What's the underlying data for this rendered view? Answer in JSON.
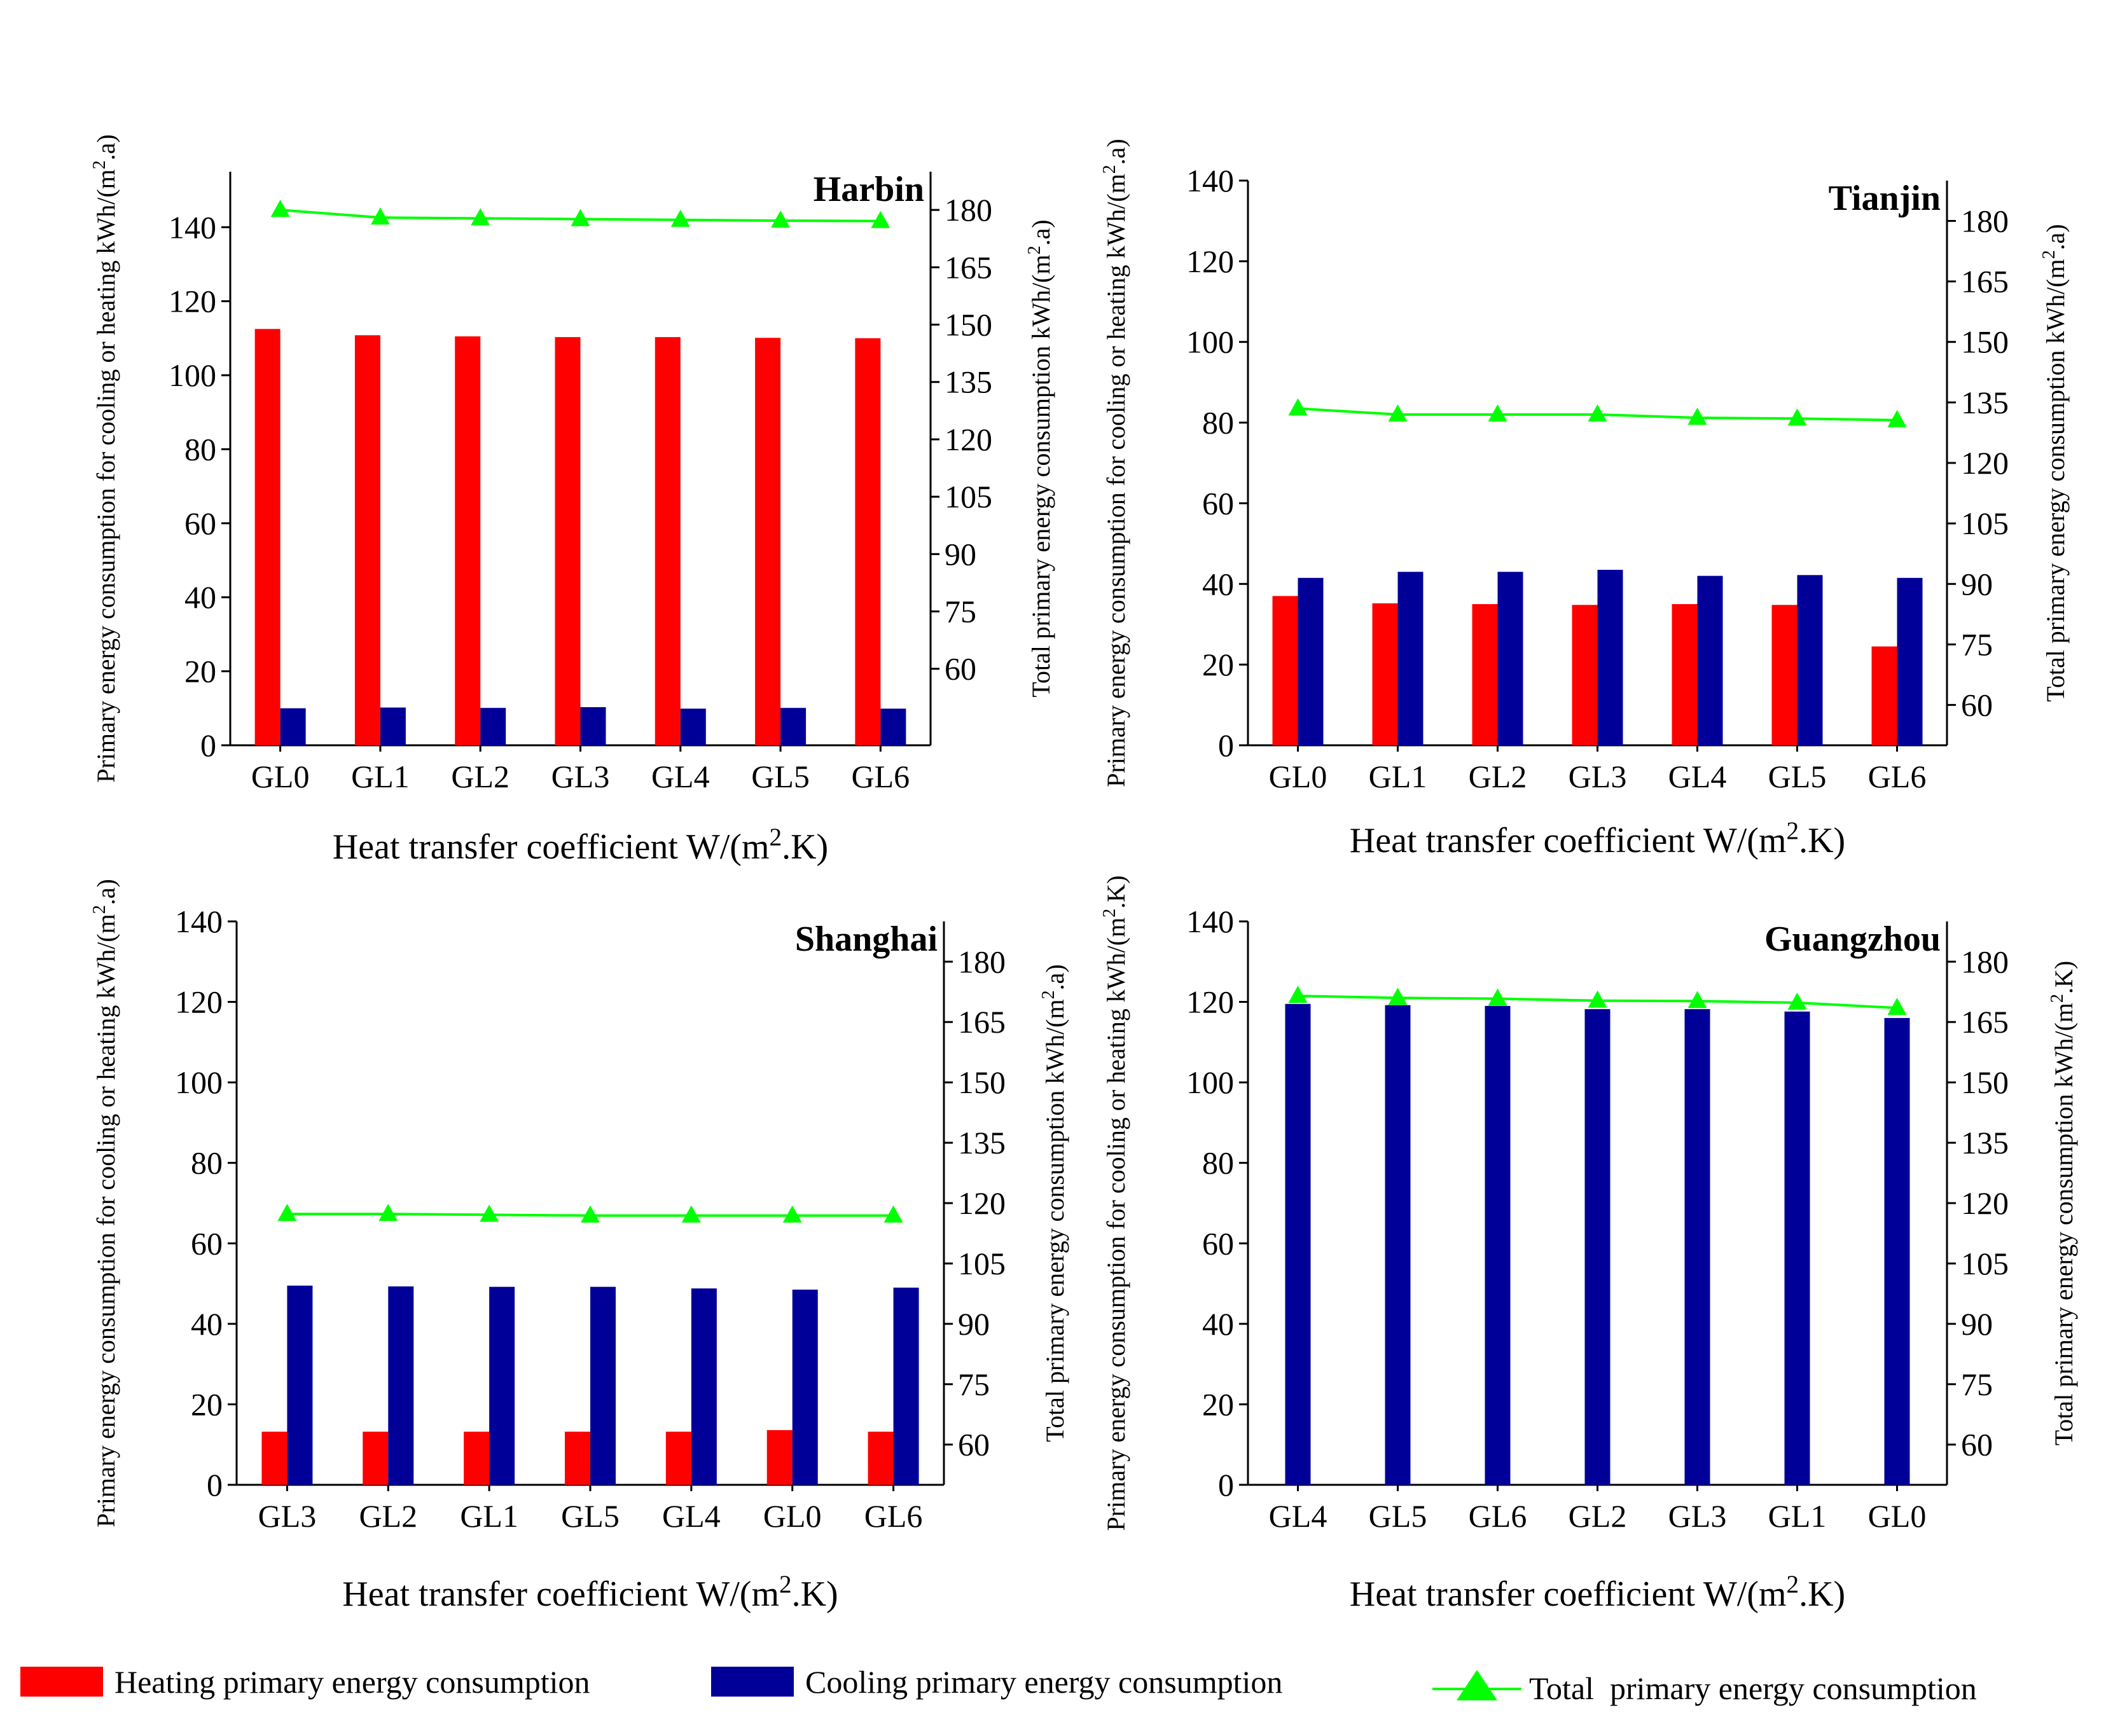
{
  "chart_data": [
    {
      "type": "bar",
      "title": "Harbin",
      "categories": [
        "GL0",
        "GL1",
        "GL2",
        "GL3",
        "GL4",
        "GL5",
        "GL6"
      ],
      "series": [
        {
          "name": "Heating primary energy consumption",
          "axis": "left",
          "values": [
            112.5,
            110.8,
            110.5,
            110.3,
            110.3,
            110.1,
            110.0
          ]
        },
        {
          "name": "Cooling primary energy consumption",
          "axis": "left",
          "values": [
            10.0,
            10.2,
            10.1,
            10.3,
            9.9,
            10.1,
            9.9
          ]
        },
        {
          "name": "Total  primary energy consumption",
          "axis": "right",
          "type": "line",
          "values": [
            180.0,
            178.0,
            177.8,
            177.6,
            177.4,
            177.2,
            177.1
          ]
        }
      ],
      "xlabel": "Heat transfer coefficient W/(m2.K)",
      "ylabel_left": "Primary energy consumption for cooling or heating kWh/(m2.a)",
      "ylabel_right": "Total primary energy consumption kWh/(m2.a)",
      "ylim_left": [
        0,
        155
      ],
      "yticks_left": [
        0,
        20,
        40,
        60,
        80,
        100,
        120,
        140
      ],
      "ylim_right": [
        40,
        190
      ],
      "yticks_right": [
        60,
        75,
        90,
        105,
        120,
        135,
        150,
        165,
        180
      ]
    },
    {
      "type": "bar",
      "title": "Tianjin",
      "categories": [
        "GL0",
        "GL1",
        "GL2",
        "GL3",
        "GL4",
        "GL5",
        "GL6"
      ],
      "series": [
        {
          "name": "Heating primary energy consumption",
          "axis": "left",
          "values": [
            37.0,
            35.2,
            35.0,
            34.8,
            35.0,
            34.8,
            24.5
          ]
        },
        {
          "name": "Cooling primary energy consumption",
          "axis": "left",
          "values": [
            41.5,
            43.0,
            43.0,
            43.5,
            42.0,
            42.2,
            41.5
          ]
        },
        {
          "name": "Total  primary energy consumption",
          "axis": "right",
          "type": "line",
          "values": [
            133.5,
            132.0,
            132.0,
            132.0,
            131.2,
            131.0,
            130.6
          ]
        }
      ],
      "xlabel": "Heat transfer coefficient W/(m2.K)",
      "ylabel_left": "Primary energy consumption for cooling or heating kWh/(m2.a)",
      "ylabel_right": "Total primary energy consumption kWh/(m2.a)",
      "ylim_left": [
        0,
        140
      ],
      "yticks_left": [
        0,
        20,
        40,
        60,
        80,
        100,
        120,
        140
      ],
      "ylim_right": [
        50,
        190
      ],
      "yticks_right": [
        60,
        75,
        90,
        105,
        120,
        135,
        150,
        165,
        180
      ]
    },
    {
      "type": "bar",
      "title": "Shanghai",
      "categories": [
        "GL3",
        "GL2",
        "GL1",
        "GL5",
        "GL4",
        "GL0",
        "GL6"
      ],
      "series": [
        {
          "name": "Heating primary energy consumption",
          "axis": "left",
          "values": [
            13.2,
            13.2,
            13.2,
            13.2,
            13.2,
            13.6,
            13.2
          ]
        },
        {
          "name": "Cooling primary energy consumption",
          "axis": "left",
          "values": [
            49.5,
            49.3,
            49.2,
            49.2,
            48.8,
            48.5,
            49.0
          ]
        },
        {
          "name": "Total  primary energy consumption",
          "axis": "right",
          "type": "line",
          "values": [
            117.3,
            117.3,
            117.1,
            116.9,
            116.9,
            116.9,
            116.9
          ]
        }
      ],
      "xlabel": "Heat transfer coefficient W/(m2.K)",
      "ylabel_left": "Primary energy consumption for cooling or heating kWh/(m2.a)",
      "ylabel_right": "Total primary energy consumption kWh/(m2.a)",
      "ylim_left": [
        0,
        140
      ],
      "yticks_left": [
        0,
        20,
        40,
        60,
        80,
        100,
        120,
        140
      ],
      "ylim_right": [
        50,
        190
      ],
      "yticks_right": [
        60,
        75,
        90,
        105,
        120,
        135,
        150,
        165,
        180
      ]
    },
    {
      "type": "bar",
      "title": "Guangzhou",
      "categories": [
        "GL4",
        "GL5",
        "GL6",
        "GL2",
        "GL3",
        "GL1",
        "GL0"
      ],
      "series": [
        {
          "name": "Cooling primary energy consumption",
          "axis": "left",
          "values": [
            119.5,
            119.2,
            119.0,
            118.2,
            118.2,
            117.6,
            116.0
          ]
        },
        {
          "name": "Total  primary energy consumption",
          "axis": "right",
          "type": "line",
          "values": [
            171.5,
            171.0,
            170.8,
            170.3,
            170.2,
            169.8,
            168.5
          ]
        }
      ],
      "xlabel": "Heat transfer coefficient W/(m2.K)",
      "ylabel_left": "Primary energy consumption for cooling or heating kWh/(m2.K)",
      "ylabel_right": "Total primary energy consumption kWh/(m2.K)",
      "ylim_left": [
        0,
        140
      ],
      "yticks_left": [
        0,
        20,
        40,
        60,
        80,
        100,
        120,
        140
      ],
      "ylim_right": [
        50,
        190
      ],
      "yticks_right": [
        60,
        75,
        90,
        105,
        120,
        135,
        150,
        165,
        180
      ]
    }
  ],
  "legend": {
    "heating": "Heating primary energy consumption",
    "cooling": "Cooling primary energy consumption",
    "total": "Total  primary energy consumption"
  },
  "colors": {
    "heating": "#ff0000",
    "cooling": "#000099",
    "total_line": "#00ff00",
    "total_marker": "#00ff00",
    "axis": "#000000"
  }
}
